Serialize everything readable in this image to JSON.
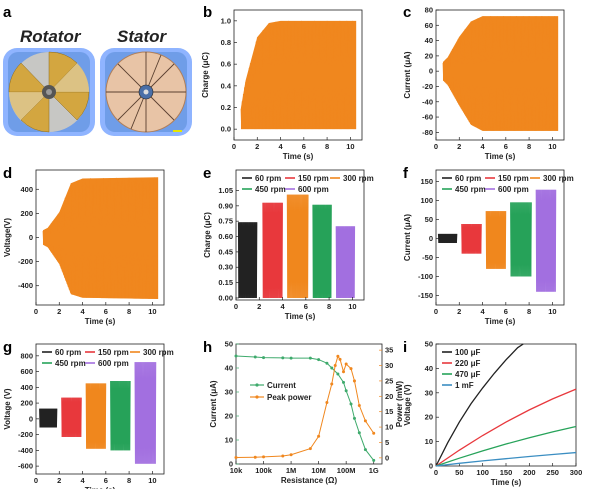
{
  "panels": {
    "a": "a",
    "b": "b",
    "c": "c",
    "d": "d",
    "e": "e",
    "f": "f",
    "g": "g",
    "h": "h",
    "i": "i"
  },
  "photo": {
    "rotator_label": "Rotator",
    "stator_label": "Stator"
  },
  "colors": {
    "orange": "#F0871E",
    "black": "#222222",
    "red": "#E8383D",
    "green": "#27A35A",
    "purple": "#A370E0",
    "navy": "#0F2D8C",
    "teal": "#3B8EC2",
    "h_green": "#3EAA6C",
    "h_orange": "#F0871E"
  },
  "chart_data": [
    {
      "id": "b",
      "type": "area",
      "xlabel": "Time (s)",
      "ylabel": "Charge (μC)",
      "xlim": [
        0,
        11
      ],
      "ylim": [
        -0.1,
        1.1
      ],
      "xticks": [
        0,
        2,
        4,
        6,
        8,
        10
      ],
      "yticks": [
        0.0,
        0.2,
        0.4,
        0.6,
        0.8,
        1.0
      ],
      "envelope": {
        "x": [
          0.6,
          1.0,
          2.0,
          3.0,
          4.0,
          10.5
        ],
        "upper": [
          0.2,
          0.45,
          0.85,
          0.98,
          1.0,
          1.0
        ],
        "lower": [
          0.0,
          0.0,
          0.0,
          0.0,
          0.0,
          0.0
        ]
      }
    },
    {
      "id": "c",
      "type": "area",
      "xlabel": "Time (s)",
      "ylabel": "Current (μA)",
      "xlim": [
        0,
        11
      ],
      "ylim": [
        -90,
        80
      ],
      "xticks": [
        0,
        2,
        4,
        6,
        8,
        10
      ],
      "yticks": [
        -80,
        -60,
        -40,
        -20,
        0,
        20,
        40,
        60,
        80
      ],
      "envelope": {
        "x": [
          0.6,
          1.0,
          2.0,
          3.0,
          4.0,
          10.5
        ],
        "upper": [
          12,
          18,
          45,
          65,
          72,
          72
        ],
        "lower": [
          -12,
          -18,
          -45,
          -70,
          -78,
          -78
        ]
      }
    },
    {
      "id": "d",
      "type": "area",
      "xlabel": "Time (s)",
      "ylabel": "Voltage(V)",
      "xlim": [
        0,
        11
      ],
      "ylim": [
        -560,
        560
      ],
      "xticks": [
        0,
        2,
        4,
        6,
        8,
        10
      ],
      "yticks": [
        -400,
        -200,
        0,
        200,
        400
      ],
      "envelope": {
        "x": [
          0.6,
          1.0,
          2.0,
          3.0,
          4.0,
          10.5
        ],
        "upper": [
          60,
          80,
          210,
          450,
          490,
          500
        ],
        "lower": [
          -60,
          -80,
          -220,
          -470,
          -500,
          -510
        ]
      }
    },
    {
      "id": "e",
      "type": "area",
      "xlabel": "Time (s)",
      "ylabel": "Charge (μC)",
      "xlim": [
        0,
        11
      ],
      "ylim": [
        -0.02,
        1.25
      ],
      "xticks": [
        0,
        2,
        4,
        6,
        8,
        10
      ],
      "yticks": [
        0.0,
        0.15,
        0.3,
        0.45,
        0.6,
        0.75,
        0.9,
        1.05
      ],
      "legend": [
        "60 rpm",
        "150 rpm",
        "300 rpm",
        "450 rpm",
        "600 rpm"
      ],
      "series": [
        {
          "name": "60 rpm",
          "x": [
            0.2,
            1.8
          ],
          "upper": 0.74,
          "lower": 0.0
        },
        {
          "name": "150 rpm",
          "x": [
            2.3,
            4.0
          ],
          "upper": 0.93,
          "lower": 0.0
        },
        {
          "name": "300 rpm",
          "x": [
            4.4,
            6.2
          ],
          "upper": 1.01,
          "lower": 0.0
        },
        {
          "name": "450 rpm",
          "x": [
            6.6,
            8.2
          ],
          "upper": 0.91,
          "lower": 0.0
        },
        {
          "name": "600 rpm",
          "x": [
            8.6,
            10.2
          ],
          "upper": 0.7,
          "lower": 0.0
        }
      ]
    },
    {
      "id": "f",
      "type": "area",
      "xlabel": "Time (s)",
      "ylabel": "Current (μA)",
      "xlim": [
        0,
        11
      ],
      "ylim": [
        -175,
        180
      ],
      "xticks": [
        0,
        2,
        4,
        6,
        8,
        10
      ],
      "yticks": [
        -150,
        -100,
        -50,
        0,
        50,
        100,
        150
      ],
      "legend": [
        "60 rpm",
        "150 rpm",
        "300 rpm",
        "450 rpm",
        "600 rpm"
      ],
      "series": [
        {
          "name": "60 rpm",
          "x": [
            0.2,
            1.8
          ],
          "upper": 12,
          "lower": -12
        },
        {
          "name": "150 rpm",
          "x": [
            2.2,
            3.9
          ],
          "upper": 38,
          "lower": -40
        },
        {
          "name": "300 rpm",
          "x": [
            4.3,
            6.0
          ],
          "upper": 72,
          "lower": -80
        },
        {
          "name": "450 rpm",
          "x": [
            6.4,
            8.2
          ],
          "upper": 95,
          "lower": -100
        },
        {
          "name": "600 rpm",
          "x": [
            8.6,
            10.3
          ],
          "upper": 128,
          "lower": -140
        }
      ]
    },
    {
      "id": "g",
      "type": "area",
      "xlabel": "Time (s)",
      "ylabel": "Voltage (V)",
      "xlim": [
        0,
        11
      ],
      "ylim": [
        -700,
        950
      ],
      "xticks": [
        0,
        2,
        4,
        6,
        8,
        10
      ],
      "yticks": [
        -600,
        -400,
        -200,
        0,
        200,
        400,
        600,
        800
      ],
      "legend": [
        "60 rpm",
        "150 rpm",
        "300 rpm",
        "450 rpm",
        "600 rpm"
      ],
      "series": [
        {
          "name": "60 rpm",
          "x": [
            0.3,
            1.8
          ],
          "upper": 130,
          "lower": -110
        },
        {
          "name": "150 rpm",
          "x": [
            2.2,
            3.9
          ],
          "upper": 270,
          "lower": -230
        },
        {
          "name": "300 rpm",
          "x": [
            4.3,
            6.0
          ],
          "upper": 450,
          "lower": -380
        },
        {
          "name": "450 rpm",
          "x": [
            6.4,
            8.1
          ],
          "upper": 480,
          "lower": -400
        },
        {
          "name": "600 rpm",
          "x": [
            8.5,
            10.3
          ],
          "upper": 720,
          "lower": -570
        }
      ]
    },
    {
      "id": "h",
      "type": "line",
      "xlabel": "Resistance (Ω)",
      "ylabel": "Current (μA)",
      "ylabel_right": "Power (mW)",
      "xscale": "log",
      "xlim": [
        10000,
        2000000000
      ],
      "ylim": [
        0,
        50
      ],
      "ylim_right": [
        -2,
        37
      ],
      "xticks": [
        "10k",
        "100k",
        "1M",
        "10M",
        "100M",
        "1G"
      ],
      "yticks": [
        0,
        10,
        20,
        30,
        40,
        50
      ],
      "yticks_right": [
        0,
        5,
        10,
        15,
        20,
        25,
        30,
        35
      ],
      "legend": [
        "Current",
        "Peak power"
      ],
      "series": [
        {
          "name": "Current",
          "axis": "left",
          "x": [
            10000,
            50000,
            100000,
            500000,
            1000000,
            5000000,
            10000000,
            20000000,
            30000000,
            50000000,
            80000000,
            100000000,
            150000000,
            200000000,
            300000000,
            500000000,
            1000000000
          ],
          "y": [
            45.0,
            44.6,
            44.3,
            44.2,
            44.1,
            44.1,
            43.5,
            42.0,
            40.0,
            37.5,
            34.0,
            30.5,
            25.0,
            19.0,
            13.0,
            6.0,
            1.5
          ]
        },
        {
          "name": "Peak power",
          "axis": "right",
          "x": [
            10000,
            50000,
            100000,
            500000,
            1000000,
            5000000,
            10000000,
            20000000,
            30000000,
            40000000,
            50000000,
            60000000,
            80000000,
            100000000,
            150000000,
            200000000,
            300000000,
            500000000,
            1000000000
          ],
          "y": [
            0.1,
            0.2,
            0.3,
            0.6,
            1.0,
            3.0,
            7.0,
            18.0,
            24.0,
            30.0,
            33.0,
            32.0,
            28.0,
            30.5,
            29.0,
            25.0,
            17.0,
            12.0,
            8.0
          ]
        }
      ]
    },
    {
      "id": "i",
      "type": "line",
      "xlabel": "Time (s)",
      "ylabel": "Voltage (V)",
      "xlim": [
        0,
        300
      ],
      "ylim": [
        0,
        50
      ],
      "xticks": [
        0,
        50,
        100,
        150,
        200,
        250,
        300
      ],
      "yticks": [
        0,
        10,
        20,
        30,
        40,
        50
      ],
      "legend": [
        "100 μF",
        "220 μF",
        "470 μF",
        "1  mF"
      ],
      "series": [
        {
          "name": "100 μF",
          "x": [
            0,
            25,
            50,
            75,
            100,
            125,
            150,
            175,
            187
          ],
          "y": [
            0,
            9.5,
            18.0,
            25.5,
            32.0,
            38.0,
            43.5,
            48.5,
            50
          ]
        },
        {
          "name": "220 μF",
          "x": [
            0,
            50,
            100,
            150,
            200,
            250,
            300
          ],
          "y": [
            0,
            6.5,
            12.5,
            18.0,
            23.0,
            27.5,
            31.5
          ]
        },
        {
          "name": "470 μF",
          "x": [
            0,
            50,
            100,
            150,
            200,
            250,
            300
          ],
          "y": [
            0,
            3.2,
            6.2,
            9.0,
            11.6,
            14.0,
            16.2
          ]
        },
        {
          "name": "1  mF",
          "x": [
            0,
            50,
            100,
            150,
            200,
            250,
            300
          ],
          "y": [
            0,
            1.1,
            2.1,
            3.0,
            3.9,
            4.7,
            5.5
          ]
        }
      ]
    }
  ]
}
